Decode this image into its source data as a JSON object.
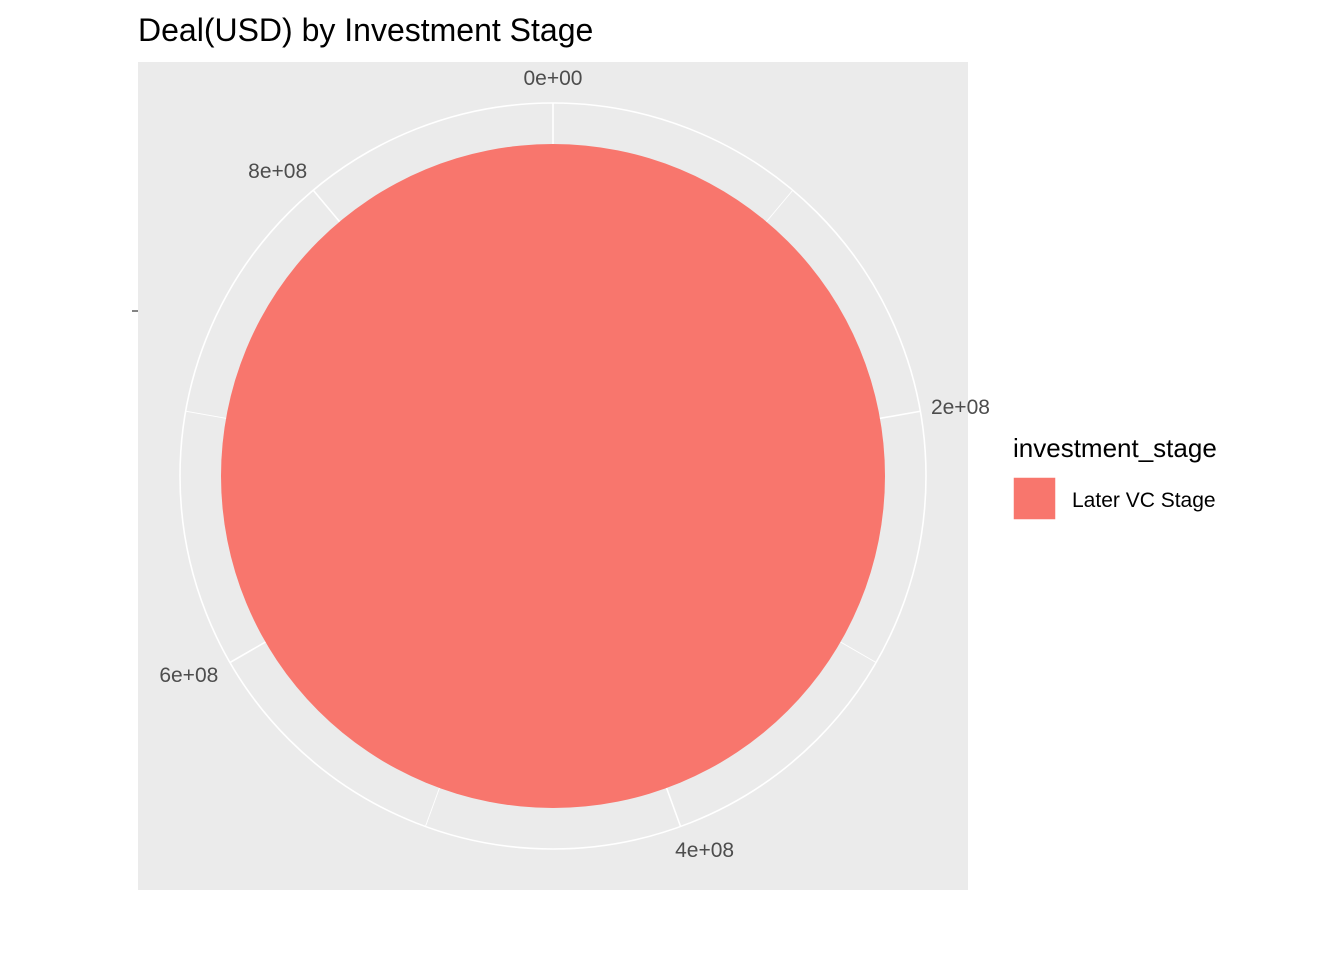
{
  "chart_data": {
    "type": "pie",
    "title": "Deal(USD) by Investment Stage",
    "xlabel": "",
    "ylabel": "",
    "coord": "polar",
    "theta_range": [
      0,
      900000000
    ],
    "theta_ticks": [
      {
        "value": 0,
        "label": "0e+00"
      },
      {
        "value": 200000000,
        "label": "2e+08"
      },
      {
        "value": 400000000,
        "label": "4e+08"
      },
      {
        "value": 600000000,
        "label": "6e+08"
      },
      {
        "value": 800000000,
        "label": "8e+08"
      }
    ],
    "slices": [
      {
        "label": "Later VC Stage",
        "value": 900000000,
        "color": "#F8766D"
      }
    ],
    "legend": {
      "title": "investment_stage",
      "position": "right",
      "items": [
        {
          "label": "Later VC Stage",
          "color": "#F8766D"
        }
      ]
    },
    "panel_background": "#EBEBEB",
    "grid": true,
    "grid_color": "#FFFFFF"
  }
}
